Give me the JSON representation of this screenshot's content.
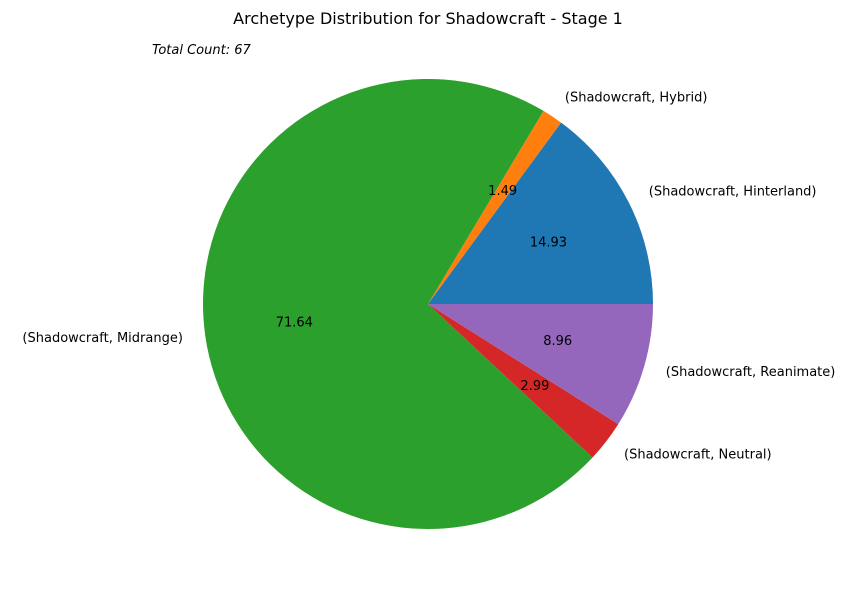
{
  "chart_data": {
    "type": "pie",
    "title": "Archetype Distribution for Shadowcraft - Stage 1",
    "annotation": "Total Count: 67",
    "categories": [
      "(Shadowcraft, Hinterland)",
      "(Shadowcraft, Hybrid)",
      "(Shadowcraft, Midrange)",
      "(Shadowcraft, Neutral)",
      "(Shadowcraft, Reanimate)"
    ],
    "values": [
      14.93,
      1.49,
      71.64,
      2.99,
      8.96
    ],
    "value_labels": [
      "14.93",
      "1.49",
      "71.64",
      "2.99",
      "8.96"
    ],
    "colors": [
      "#1f77b4",
      "#ff7f0e",
      "#2ca02c",
      "#d62728",
      "#9467bd"
    ],
    "start_angle_deg": 0,
    "direction": "counterclockwise"
  }
}
